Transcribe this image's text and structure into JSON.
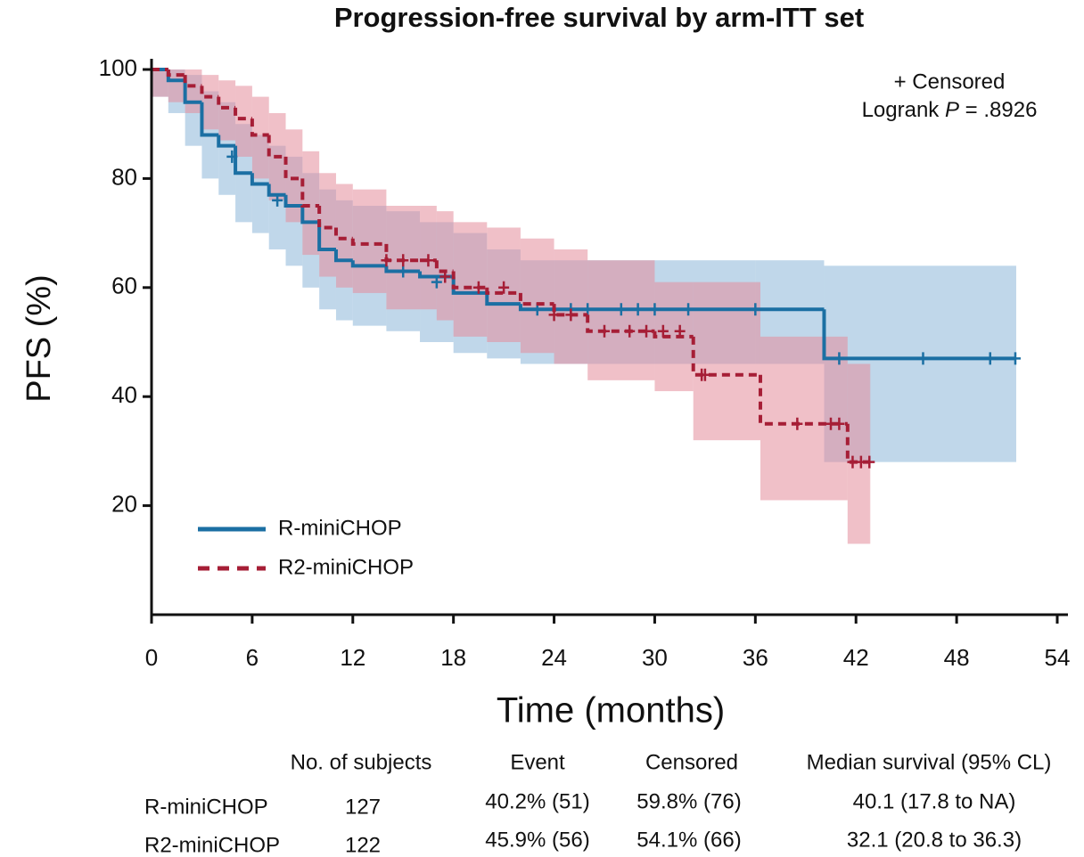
{
  "chart_data": {
    "type": "step",
    "title": "Progression-free survival by arm-ITT set",
    "x_label": "Time (months)",
    "y_label": "PFS (%)",
    "xlim": [
      0,
      54
    ],
    "ylim": [
      0,
      100
    ],
    "xticks": [
      0,
      6,
      12,
      18,
      24,
      30,
      36,
      42,
      48,
      54
    ],
    "yticks": [
      20,
      40,
      60,
      80,
      100
    ],
    "censor_label": "+ Censored",
    "logrank_label": "Logrank",
    "logrank_stat": "P",
    "logrank_value": "= .8926",
    "legend": "lower left",
    "series": [
      {
        "name": "R-miniCHOP",
        "color": "#1b6fa3",
        "band_color": "#8db6d9",
        "dash": false,
        "x": [
          0,
          1,
          2,
          3,
          4,
          5,
          6,
          7,
          8,
          9,
          10,
          11,
          12,
          14,
          16,
          18,
          20,
          22,
          24,
          30,
          36,
          40.1,
          51.5
        ],
        "values": [
          100,
          98,
          94,
          88,
          86,
          81,
          79,
          77,
          75,
          72,
          67,
          65,
          64,
          63,
          62,
          59,
          57,
          56,
          56,
          56,
          56,
          47,
          47
        ],
        "ci_lower": [
          95,
          92,
          86,
          80,
          77,
          72,
          70,
          67,
          64,
          60,
          56,
          54,
          53,
          52,
          50,
          48,
          47,
          46,
          46,
          46,
          46,
          28,
          28
        ],
        "ci_upper": [
          100,
          100,
          99,
          96,
          94,
          90,
          88,
          86,
          84,
          81,
          78,
          76,
          75,
          74,
          72,
          70,
          67,
          65,
          65,
          65,
          65,
          64,
          64
        ],
        "censored_x": [
          4.8,
          7.5,
          15,
          17,
          23,
          25,
          26,
          28,
          29,
          30,
          32,
          36,
          41,
          46,
          50,
          51.5
        ],
        "censored_y": [
          84,
          76,
          63,
          61,
          56,
          56,
          56,
          56,
          56,
          56,
          56,
          56,
          47,
          47,
          47,
          47
        ]
      },
      {
        "name": "R2-miniCHOP",
        "color": "#a61e36",
        "band_color": "#e48c9a",
        "dash": true,
        "x": [
          0,
          1,
          2,
          3,
          4,
          5,
          6,
          7,
          8,
          9,
          10,
          11,
          12,
          14,
          16,
          17,
          18,
          20,
          22,
          24,
          26,
          30,
          32.3,
          36.3,
          41.5,
          42.8
        ],
        "values": [
          100,
          99,
          97,
          95,
          93,
          91,
          88,
          84,
          80,
          75,
          71,
          69,
          68,
          65,
          65,
          63,
          60,
          59,
          57,
          55,
          52,
          51,
          44,
          35,
          28,
          28
        ],
        "ci_lower": [
          95,
          94,
          92,
          89,
          87,
          84,
          80,
          76,
          72,
          66,
          62,
          60,
          59,
          56,
          56,
          54,
          51,
          50,
          48,
          46,
          43,
          41,
          32,
          21,
          13,
          13
        ],
        "ci_upper": [
          100,
          100,
          100,
          99,
          98,
          97,
          95,
          92,
          89,
          85,
          81,
          79,
          78,
          75,
          75,
          74,
          72,
          71,
          69,
          67,
          65,
          61,
          61,
          51,
          46,
          46
        ],
        "censored_x": [
          14,
          15,
          16.5,
          17.5,
          19.5,
          21,
          24,
          25,
          27,
          28.5,
          29.5,
          30.5,
          31.5,
          32.8,
          33,
          38.5,
          40.5,
          41,
          41.8,
          42.3,
          42.8
        ],
        "censored_y": [
          65,
          65,
          65,
          62,
          60,
          60,
          55,
          55,
          52,
          52,
          52,
          52,
          52,
          44,
          44,
          35,
          35,
          35,
          28,
          28,
          28
        ]
      }
    ]
  },
  "table": {
    "headers": [
      "No. of subjects",
      "Event",
      "Censored",
      "Median survival (95% CL)"
    ],
    "rows": [
      [
        "R-miniCHOP",
        "127",
        "40.2% (51)",
        "59.8% (76)",
        "40.1 (17.8 to NA)"
      ],
      [
        "R2-miniCHOP",
        "122",
        "45.9% (56)",
        "54.1% (66)",
        "32.1 (20.8 to 36.3)"
      ]
    ]
  }
}
